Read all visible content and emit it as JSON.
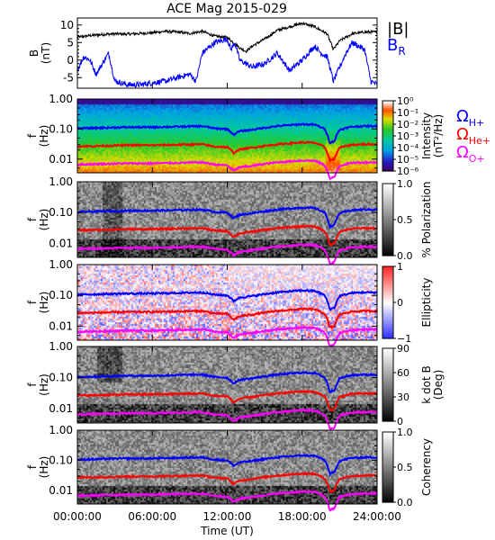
{
  "title": "ACE Mag 2015-029",
  "colors": {
    "bmag": "#000000",
    "br": "#0000ff",
    "h_plus": "#0000ff",
    "he_plus": "#ff0000",
    "o_plus": "#ff00ff"
  },
  "chart_data": [
    {
      "type": "line",
      "ylabel_top": "B",
      "ylabel_unit": "(nT)",
      "yticks": [
        "10",
        "5",
        "0",
        "-5"
      ],
      "ylim": [
        -8,
        12
      ],
      "xlim_hours": [
        0,
        24
      ],
      "series": [
        {
          "name": "|B|",
          "color": "#000000",
          "x": [
            0,
            1,
            2,
            3,
            4,
            5,
            6,
            7,
            8,
            9,
            10,
            11,
            12,
            13,
            13.5,
            14,
            15,
            16,
            17,
            18,
            19,
            20,
            20.5,
            21,
            22,
            23,
            24
          ],
          "values": [
            6.5,
            7.0,
            7.3,
            7.5,
            7.4,
            7.6,
            7.8,
            8.2,
            8.0,
            7.6,
            8.2,
            6.8,
            6.5,
            3.5,
            2.5,
            4.0,
            6.0,
            8.5,
            9.5,
            10.5,
            9.5,
            7.5,
            3.0,
            5.5,
            7.5,
            8.0,
            8.0
          ]
        },
        {
          "name": "B_R",
          "color": "#0000ff",
          "x": [
            0,
            0.5,
            1,
            1.5,
            2,
            2.5,
            3,
            4,
            5,
            6,
            7,
            8,
            9,
            9.5,
            10,
            11,
            12,
            12.3,
            12.6,
            13,
            14,
            15,
            16,
            17,
            18,
            19,
            19.5,
            20,
            20.5,
            21,
            21.5,
            22,
            23,
            23.5,
            24
          ],
          "values": [
            -3,
            1,
            0,
            -4,
            -1,
            2,
            -6,
            -7,
            -7,
            -6.5,
            -6,
            -5,
            -4,
            -6,
            2,
            5,
            6,
            3,
            5,
            0,
            -2,
            -1,
            2,
            -3,
            0,
            4,
            2,
            1,
            -6,
            -2,
            2,
            5,
            3,
            -6,
            -7
          ]
        }
      ]
    },
    {
      "type": "heatmap",
      "name": "power-spectrum",
      "ylabel": "f",
      "yunit": "(Hz)",
      "yticks": [
        "1.00",
        "0.10",
        "0.01"
      ],
      "colorbar_label": "Intensity",
      "colorbar_unit": "(nT²/Hz)",
      "colorbar_ticks": [
        "10⁰",
        "10⁻¹",
        "10⁻²",
        "10⁻³",
        "10⁻⁴",
        "10⁻⁵",
        "10⁻⁶"
      ],
      "colormap": "rainbow",
      "legend": [
        "ΩH+",
        "ΩHe+",
        "ΩO+"
      ]
    },
    {
      "type": "heatmap",
      "name": "polarization",
      "ylabel": "f",
      "yunit": "(Hz)",
      "yticks": [
        "1.00",
        "0.10",
        "0.01"
      ],
      "colorbar_label": "% Polarization",
      "colorbar_ticks": [
        "1.0",
        "0.5",
        "0.0"
      ],
      "colormap": "gray"
    },
    {
      "type": "heatmap",
      "name": "ellipticity",
      "ylabel": "f",
      "yunit": "(Hz)",
      "yticks": [
        "1.00",
        "0.10",
        "0.01"
      ],
      "colorbar_label": "Ellipticity",
      "colorbar_ticks": [
        "1",
        "0",
        "−1"
      ],
      "colormap": "blue-white-red"
    },
    {
      "type": "heatmap",
      "name": "k-dot-b",
      "ylabel": "f",
      "yunit": "(Hz)",
      "yticks": [
        "1.00",
        "0.10",
        "0.01"
      ],
      "colorbar_label": "k dot B",
      "colorbar_unit": "(Deg)",
      "colorbar_ticks": [
        "90",
        "60",
        "30",
        "0"
      ],
      "colormap": "gray"
    },
    {
      "type": "heatmap",
      "name": "coherency",
      "ylabel": "f",
      "yunit": "(Hz)",
      "yticks": [
        "1.00",
        "0.10",
        "0.01"
      ],
      "colorbar_label": "Coherency",
      "colorbar_ticks": [
        "1.0",
        "0.5",
        "0.0"
      ],
      "colormap": "gray"
    }
  ],
  "gyrofrequency_lines": {
    "x_hours": [
      0,
      2,
      4,
      6,
      8,
      10,
      11,
      12,
      12.5,
      13,
      14,
      16,
      18,
      19,
      19.8,
      20.2,
      20.6,
      21,
      22,
      23,
      24
    ],
    "h_plus_hz": [
      0.105,
      0.11,
      0.115,
      0.115,
      0.12,
      0.125,
      0.105,
      0.1,
      0.065,
      0.085,
      0.095,
      0.125,
      0.145,
      0.14,
      0.1,
      0.035,
      0.04,
      0.095,
      0.12,
      0.125,
      0.125
    ],
    "he_plus_hz": [
      0.0265,
      0.0275,
      0.029,
      0.029,
      0.03,
      0.031,
      0.026,
      0.025,
      0.016,
      0.021,
      0.024,
      0.031,
      0.036,
      0.035,
      0.025,
      0.009,
      0.01,
      0.024,
      0.03,
      0.031,
      0.031
    ],
    "o_plus_hz": [
      0.0066,
      0.0069,
      0.0072,
      0.0072,
      0.0075,
      0.0078,
      0.0066,
      0.0062,
      0.0041,
      0.0053,
      0.006,
      0.0078,
      0.009,
      0.0088,
      0.0062,
      0.0022,
      0.0025,
      0.006,
      0.0075,
      0.0078,
      0.0078
    ]
  },
  "xaxis": {
    "label": "Time (UT)",
    "ticks_hours": [
      0,
      6,
      12,
      18,
      24
    ],
    "tick_labels": [
      "00:00:00",
      "06:00:00",
      "12:00:00",
      "18:00:00",
      "24:00:00"
    ]
  }
}
